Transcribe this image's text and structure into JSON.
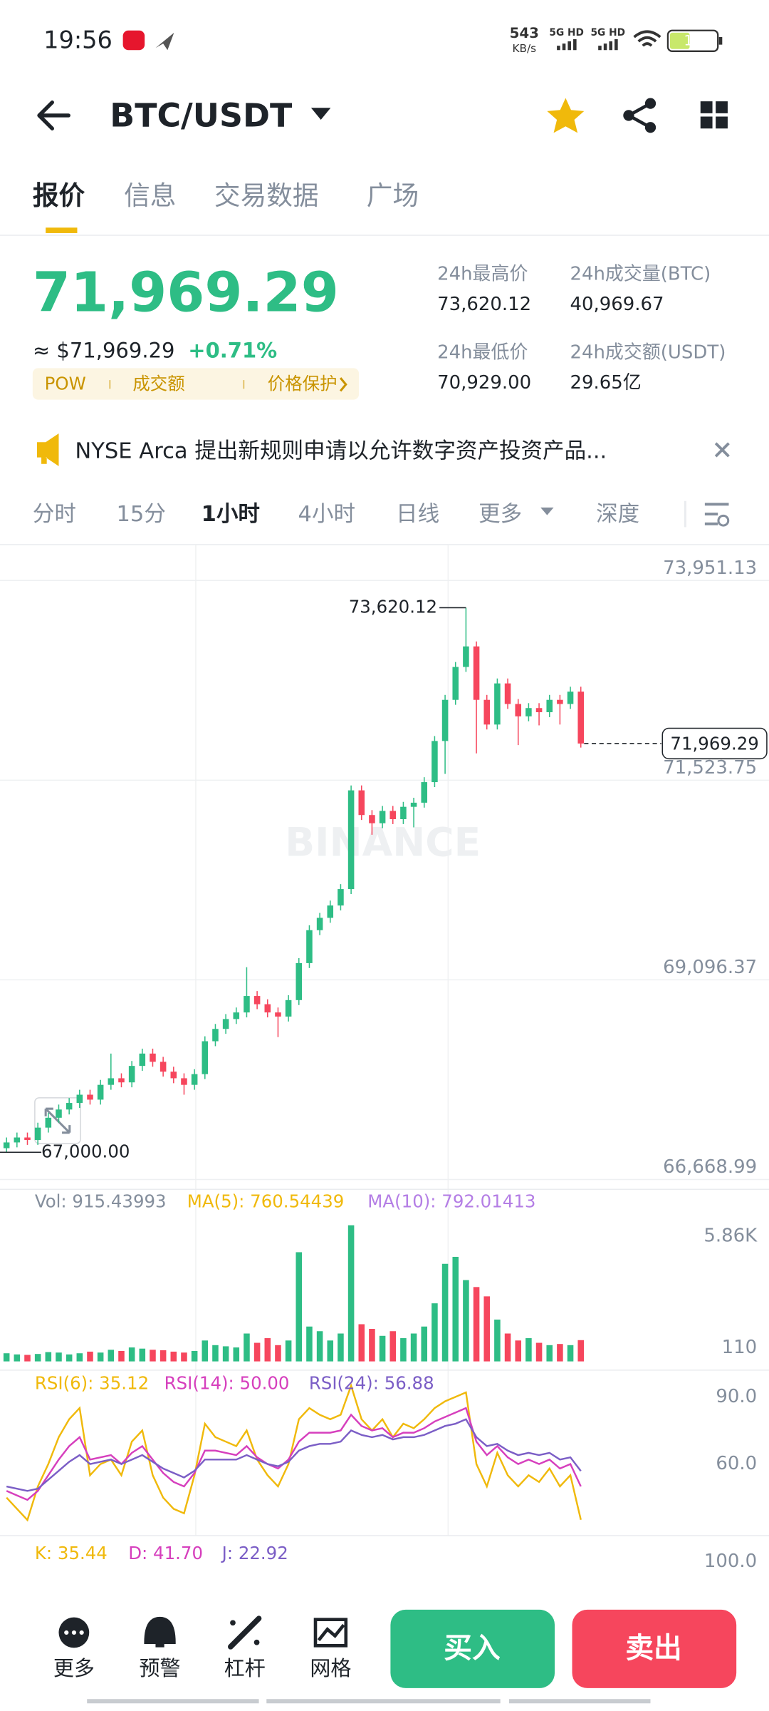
{
  "status": {
    "time": "19:56",
    "speed": "543",
    "speed_unit": "KB/s",
    "net1": "5G HD",
    "net2": "5G HD",
    "battery": "15"
  },
  "header": {
    "pair": "BTC/USDT"
  },
  "tabs": [
    "报价",
    "信息",
    "交易数据",
    "广场"
  ],
  "price": {
    "last": "71,969.29",
    "usd": "≈ $71,969.29",
    "change": "+0.71%",
    "tags": [
      "POW",
      "成交额",
      "价格保护"
    ]
  },
  "stats": [
    {
      "label": "24h最高价",
      "value": "73,620.12"
    },
    {
      "label": "24h成交量(BTC)",
      "value": "40,969.67"
    },
    {
      "label": "24h最低价",
      "value": "70,929.00"
    },
    {
      "label": "24h成交额(USDT)",
      "value": "29.65亿"
    }
  ],
  "news": "NYSE Arca 提出新规则申请以允许数字资产投资产品...",
  "intervals": [
    "分时",
    "15分",
    "1小时",
    "4小时",
    "日线",
    "更多",
    "深度"
  ],
  "chart_data": {
    "type": "candlestick",
    "watermark": "BINANCE",
    "up_color": "#2ebd85",
    "down_color": "#f6465d",
    "ylim": [
      66668.99,
      73951.13
    ],
    "yticks": [
      {
        "value": 73951.13,
        "label": "73,951.13"
      },
      {
        "value": 71523.75,
        "label": "71,523.75"
      },
      {
        "value": 69096.37,
        "label": "69,096.37"
      },
      {
        "value": 66668.99,
        "label": "66,668.99"
      }
    ],
    "high_label": {
      "value": 73620.12,
      "label": "73,620.12"
    },
    "low_label": {
      "value": 67000,
      "label": "67,000.00"
    },
    "last_label": {
      "value": 71969.29,
      "label": "71,969.29"
    },
    "candles": [
      [
        67050,
        67180,
        67000,
        67120
      ],
      [
        67120,
        67240,
        67060,
        67180
      ],
      [
        67180,
        67240,
        67090,
        67150
      ],
      [
        67150,
        67360,
        67090,
        67300
      ],
      [
        67300,
        67480,
        67240,
        67420
      ],
      [
        67420,
        67580,
        67360,
        67520
      ],
      [
        67520,
        67660,
        67460,
        67600
      ],
      [
        67600,
        67760,
        67540,
        67700
      ],
      [
        67700,
        67760,
        67580,
        67640
      ],
      [
        67640,
        67880,
        67580,
        67820
      ],
      [
        67820,
        68200,
        67760,
        67900
      ],
      [
        67900,
        67960,
        67790,
        67850
      ],
      [
        67850,
        68110,
        67790,
        68050
      ],
      [
        68050,
        68260,
        67990,
        68200
      ],
      [
        68200,
        68260,
        68040,
        68100
      ],
      [
        68100,
        68160,
        67920,
        67980
      ],
      [
        67980,
        68040,
        67840,
        67900
      ],
      [
        67900,
        67960,
        67700,
        67820
      ],
      [
        67820,
        68010,
        67760,
        67950
      ],
      [
        67950,
        68410,
        67890,
        68350
      ],
      [
        68350,
        68560,
        68290,
        68500
      ],
      [
        68500,
        68680,
        68440,
        68620
      ],
      [
        68620,
        68760,
        68560,
        68700
      ],
      [
        68700,
        69250,
        68640,
        68900
      ],
      [
        68900,
        68960,
        68740,
        68800
      ],
      [
        68800,
        68860,
        68640,
        68700
      ],
      [
        68700,
        68760,
        68400,
        68650
      ],
      [
        68650,
        68910,
        68590,
        68850
      ],
      [
        68850,
        69360,
        68790,
        69300
      ],
      [
        69300,
        69760,
        69240,
        69700
      ],
      [
        69700,
        69910,
        69640,
        69850
      ],
      [
        69850,
        70060,
        69790,
        70000
      ],
      [
        70000,
        70260,
        69940,
        70200
      ],
      [
        70200,
        71460,
        70140,
        71400
      ],
      [
        71400,
        71460,
        71040,
        71100
      ],
      [
        71100,
        71160,
        70860,
        71000
      ],
      [
        71000,
        71210,
        70940,
        71150
      ],
      [
        71150,
        71210,
        70990,
        71050
      ],
      [
        71050,
        71260,
        70990,
        71200
      ],
      [
        71200,
        71310,
        70950,
        71250
      ],
      [
        71250,
        71560,
        71190,
        71500
      ],
      [
        71500,
        72060,
        71440,
        72000
      ],
      [
        72000,
        72560,
        71600,
        72500
      ],
      [
        72500,
        72960,
        72440,
        72900
      ],
      [
        72900,
        73620.12,
        72840,
        73150
      ],
      [
        73150,
        73210,
        71850,
        72500
      ],
      [
        72500,
        72560,
        72140,
        72200
      ],
      [
        72200,
        72760,
        72140,
        72700
      ],
      [
        72700,
        72760,
        72390,
        72450
      ],
      [
        72450,
        72510,
        71950,
        72300
      ],
      [
        72300,
        72460,
        72240,
        72400
      ],
      [
        72400,
        72460,
        72190,
        72350
      ],
      [
        72350,
        72560,
        72290,
        72500
      ],
      [
        72500,
        72560,
        72200,
        72450
      ],
      [
        72450,
        72660,
        72390,
        72600
      ],
      [
        72600,
        72660,
        71920,
        71969.29
      ]
    ],
    "volume": {
      "legend": [
        "Vol: 915.43993",
        "MA(5): 760.54439",
        "MA(10): 792.01413"
      ],
      "ylim": [
        0,
        5860
      ],
      "yticks": [
        {
          "value": 5860,
          "label": "5.86K"
        },
        110
      ],
      "values": [
        350,
        300,
        280,
        320,
        400,
        380,
        300,
        350,
        420,
        380,
        500,
        450,
        600,
        550,
        500,
        480,
        420,
        380,
        450,
        900,
        700,
        650,
        600,
        1200,
        800,
        1000,
        700,
        900,
        4700,
        1500,
        1300,
        900,
        1200,
        5860,
        1600,
        1400,
        1100,
        1300,
        1000,
        1200,
        1500,
        2500,
        4200,
        4500,
        3500,
        3200,
        2800,
        1800,
        1200,
        900,
        1000,
        800,
        700,
        750,
        700,
        915
      ]
    },
    "rsi": {
      "ylim": [
        29,
        100
      ],
      "yticks": [
        {
          "value": 90,
          "label": "90.0"
        },
        {
          "value": 60,
          "label": "60.0"
        }
      ],
      "series": [
        {
          "name": "RSI(6): 35.12",
          "color": "#f0b90b",
          "values": [
            45,
            40,
            35,
            50,
            60,
            72,
            80,
            85,
            55,
            60,
            62,
            55,
            70,
            75,
            55,
            45,
            40,
            38,
            55,
            78,
            72,
            70,
            68,
            75,
            62,
            55,
            50,
            60,
            80,
            85,
            82,
            80,
            82,
            95,
            80,
            75,
            80,
            72,
            78,
            76,
            80,
            85,
            88,
            90,
            92,
            60,
            50,
            65,
            55,
            50,
            55,
            52,
            58,
            50,
            55,
            35.12
          ]
        },
        {
          "name": "RSI(14): 50.00",
          "color": "#d63fbd",
          "values": [
            48,
            46,
            44,
            48,
            55,
            62,
            68,
            72,
            62,
            63,
            64,
            60,
            65,
            68,
            62,
            56,
            52,
            50,
            56,
            66,
            66,
            65,
            64,
            68,
            63,
            60,
            58,
            62,
            70,
            74,
            74,
            74,
            75,
            82,
            77,
            75,
            76,
            72,
            74,
            74,
            76,
            79,
            81,
            83,
            85,
            70,
            64,
            68,
            63,
            60,
            62,
            60,
            62,
            58,
            60,
            50
          ]
        },
        {
          "name": "RSI(24): 56.88",
          "color": "#7b5ec6",
          "values": [
            50,
            49,
            48,
            49,
            53,
            57,
            61,
            64,
            60,
            61,
            62,
            60,
            62,
            64,
            61,
            58,
            56,
            54,
            57,
            62,
            62,
            62,
            62,
            64,
            62,
            60,
            59,
            61,
            66,
            68,
            69,
            69,
            70,
            75,
            73,
            72,
            73,
            71,
            72,
            72,
            73,
            75,
            77,
            78,
            80,
            72,
            68,
            69,
            66,
            64,
            65,
            64,
            65,
            62,
            63,
            56.88
          ]
        }
      ]
    },
    "kdj": {
      "legend": [
        "K: 35.44",
        "D: 41.70",
        "J: 22.92"
      ],
      "yticks": [
        {
          "value": 100,
          "label": "100.0"
        }
      ]
    }
  },
  "buttons": [
    "更多",
    "预警",
    "杠杆",
    "网格"
  ],
  "buy": "买入",
  "sell": "卖出"
}
